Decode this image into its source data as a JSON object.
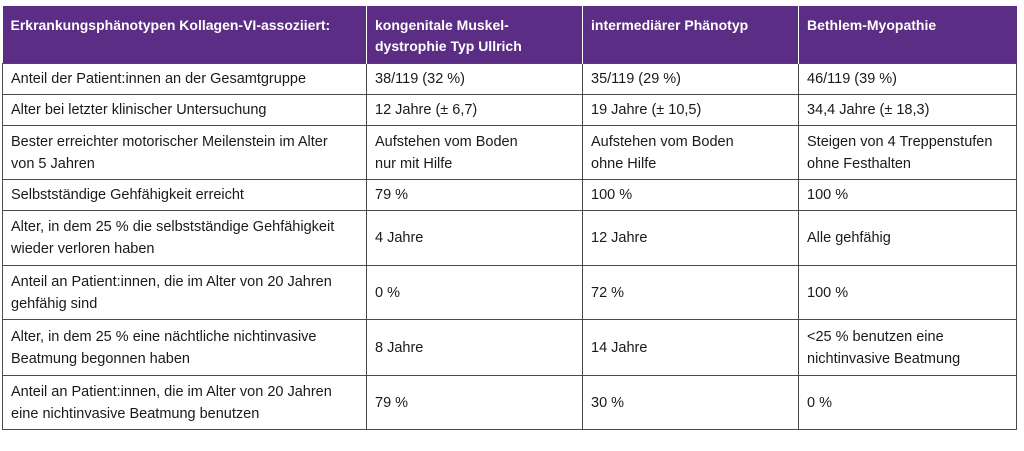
{
  "header": [
    "Erkrankungsphänotypen Kollagen-VI-assoziiert:",
    "kongenitale Muskel-\ndystrophie Typ Ullrich",
    "intermediärer Phänotyp",
    "Bethlem-Myopathie"
  ],
  "rows": [
    [
      "Anteil der Patient:innen an der Gesamtgruppe",
      "38/119 (32 %)",
      "35/119 (29 %)",
      "46/119 (39 %)"
    ],
    [
      "Alter bei letzter klinischer Untersuchung",
      "12 Jahre (± 6,7)",
      "19 Jahre (± 10,5)",
      "34,4 Jahre (± 18,3)"
    ],
    [
      "Bester erreichter motorischer Meilenstein im Alter\nvon 5 Jahren",
      "Aufstehen vom Boden\nnur mit Hilfe",
      "Aufstehen vom Boden\nohne Hilfe",
      "Steigen von 4 Treppenstufen\nohne Festhalten"
    ],
    [
      "Selbstständige Gehfähigkeit erreicht",
      "79 %",
      "100 %",
      "100 %"
    ],
    [
      "Alter, in dem 25 % die selbstständige Gehfähigkeit\nwieder verloren haben",
      "4 Jahre",
      "12 Jahre",
      "Alle gehfähig"
    ],
    [
      "Anteil an Patient:innen, die im Alter von 20 Jahren\ngehfähig sind",
      "0 %",
      "72 %",
      "100 %"
    ],
    [
      "Alter, in dem 25 % eine nächtliche nichtinvasive\nBeatmung begonnen haben",
      "8 Jahre",
      "14 Jahre",
      "<25 % benutzen eine\nnichtinvasive Beatmung"
    ],
    [
      "Anteil an Patient:innen, die im Alter von 20 Jahren\neine nichtinvasive Beatmung benutzen",
      "79 %",
      "30 %",
      "0 %"
    ]
  ]
}
